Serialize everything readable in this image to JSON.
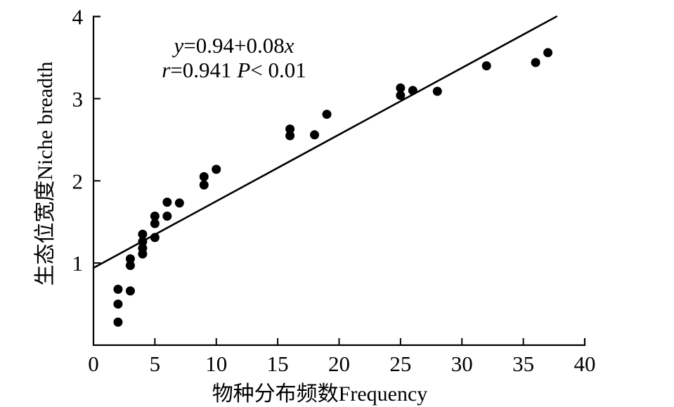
{
  "chart_data": {
    "type": "scatter",
    "title": "",
    "xlabel": "物种分布频数Frequency",
    "ylabel": "生态位宽度Niche breadth",
    "xlim": [
      0,
      40
    ],
    "ylim": [
      0,
      4
    ],
    "xticks": [
      0,
      5,
      10,
      15,
      20,
      25,
      30,
      35,
      40
    ],
    "yticks": [
      1,
      2,
      3,
      4
    ],
    "grid": false,
    "legend": "none",
    "marker_color": "#000000",
    "line_color": "#000000",
    "axis_color": "#000000",
    "background_color": "#ffffff",
    "annotation": {
      "line1": "y=0.94+0.08x",
      "line2": "r=0.941 P< 0.01"
    },
    "regression": {
      "intercept": 0.94,
      "slope": 0.08,
      "r": 0.941,
      "p": "< 0.01",
      "drawn_segment": {
        "x1": 0,
        "y1": 0.94,
        "x2": 37.7,
        "y2": 4.0
      }
    },
    "points": [
      [
        2,
        0.28
      ],
      [
        2,
        0.5
      ],
      [
        2,
        0.68
      ],
      [
        3,
        0.66
      ],
      [
        3,
        0.97
      ],
      [
        3,
        1.05
      ],
      [
        4,
        1.11
      ],
      [
        4,
        1.18
      ],
      [
        4,
        1.26
      ],
      [
        4,
        1.35
      ],
      [
        5,
        1.31
      ],
      [
        5,
        1.48
      ],
      [
        5,
        1.57
      ],
      [
        6,
        1.57
      ],
      [
        6,
        1.74
      ],
      [
        7,
        1.73
      ],
      [
        9,
        1.95
      ],
      [
        9,
        2.05
      ],
      [
        10,
        2.14
      ],
      [
        16,
        2.55
      ],
      [
        16,
        2.63
      ],
      [
        18,
        2.56
      ],
      [
        19,
        2.81
      ],
      [
        25,
        3.04
      ],
      [
        25,
        3.13
      ],
      [
        26,
        3.1
      ],
      [
        28,
        3.09
      ],
      [
        32,
        3.4
      ],
      [
        36,
        3.44
      ],
      [
        37,
        3.56
      ]
    ]
  }
}
